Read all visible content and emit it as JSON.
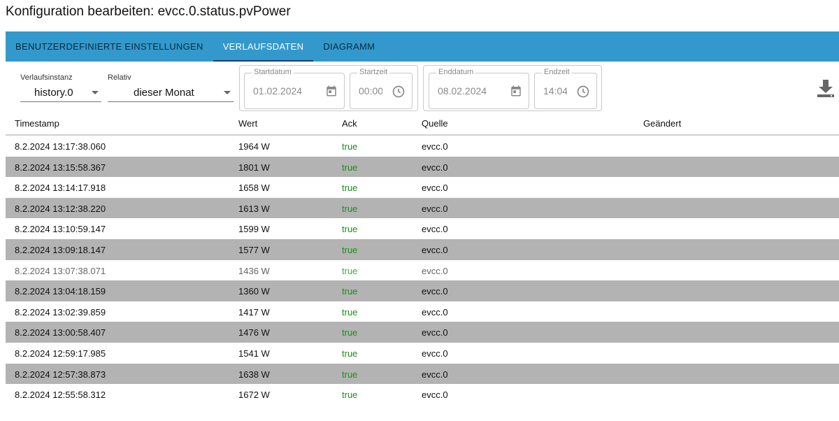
{
  "dialog": {
    "title": "Konfiguration bearbeiten: evcc.0.status.pvPower"
  },
  "tabs": [
    {
      "label": "BENUTZERDEFINIERTE EINSTELLUNGEN",
      "active": false
    },
    {
      "label": "VERLAUFSDATEN",
      "active": true
    },
    {
      "label": "DIAGRAMM",
      "active": false
    }
  ],
  "controls": {
    "instance": {
      "label": "Verlaufsinstanz",
      "value": "history.0"
    },
    "relative": {
      "label": "Relativ",
      "value": "dieser Monat"
    },
    "start_date": {
      "label": "Startdatum",
      "value": "01.02.2024",
      "icon": "calendar-icon"
    },
    "start_time": {
      "label": "Startzeit",
      "value": "00:00",
      "icon": "clock-icon"
    },
    "end_date": {
      "label": "Enddatum",
      "value": "08.02.2024",
      "icon": "calendar-icon"
    },
    "end_time": {
      "label": "Endzeit",
      "value": "14:04",
      "icon": "clock-icon"
    },
    "download_icon": "download-icon"
  },
  "table": {
    "headers": [
      "Timestamp",
      "Wert",
      "Ack",
      "Quelle",
      "Geändert"
    ],
    "rows": [
      {
        "timestamp": "8.2.2024 13:17:38.060",
        "value": "1964 W",
        "ack": "true",
        "source": "evcc.0",
        "changed": ""
      },
      {
        "timestamp": "8.2.2024 13:15:58.367",
        "value": "1801 W",
        "ack": "true",
        "source": "evcc.0",
        "changed": ""
      },
      {
        "timestamp": "8.2.2024 13:14:17.918",
        "value": "1658 W",
        "ack": "true",
        "source": "evcc.0",
        "changed": ""
      },
      {
        "timestamp": "8.2.2024 13:12:38.220",
        "value": "1613 W",
        "ack": "true",
        "source": "evcc.0",
        "changed": ""
      },
      {
        "timestamp": "8.2.2024 13:10:59.147",
        "value": "1599 W",
        "ack": "true",
        "source": "evcc.0",
        "changed": ""
      },
      {
        "timestamp": "8.2.2024 13:09:18.147",
        "value": "1577 W",
        "ack": "true",
        "source": "evcc.0",
        "changed": ""
      },
      {
        "timestamp": "8.2.2024 13:07:38.071",
        "value": "1436 W",
        "ack": "true",
        "source": "evcc.0",
        "changed": ""
      },
      {
        "timestamp": "8.2.2024 13:04:18.159",
        "value": "1360 W",
        "ack": "true",
        "source": "evcc.0",
        "changed": ""
      },
      {
        "timestamp": "8.2.2024 13:02:39.859",
        "value": "1417 W",
        "ack": "true",
        "source": "evcc.0",
        "changed": ""
      },
      {
        "timestamp": "8.2.2024 13:00:58.407",
        "value": "1476 W",
        "ack": "true",
        "source": "evcc.0",
        "changed": ""
      },
      {
        "timestamp": "8.2.2024 12:59:17.985",
        "value": "1541 W",
        "ack": "true",
        "source": "evcc.0",
        "changed": ""
      },
      {
        "timestamp": "8.2.2024 12:57:38.873",
        "value": "1638 W",
        "ack": "true",
        "source": "evcc.0",
        "changed": ""
      },
      {
        "timestamp": "8.2.2024 12:55:58.312",
        "value": "1672 W",
        "ack": "true",
        "source": "evcc.0",
        "changed": ""
      }
    ]
  },
  "colors": {
    "tabbar": "#3399cc",
    "tab_indicator": "#1d3f6e",
    "ack_true": "#1a8f1a",
    "row_alt": "#b3b3b3"
  }
}
